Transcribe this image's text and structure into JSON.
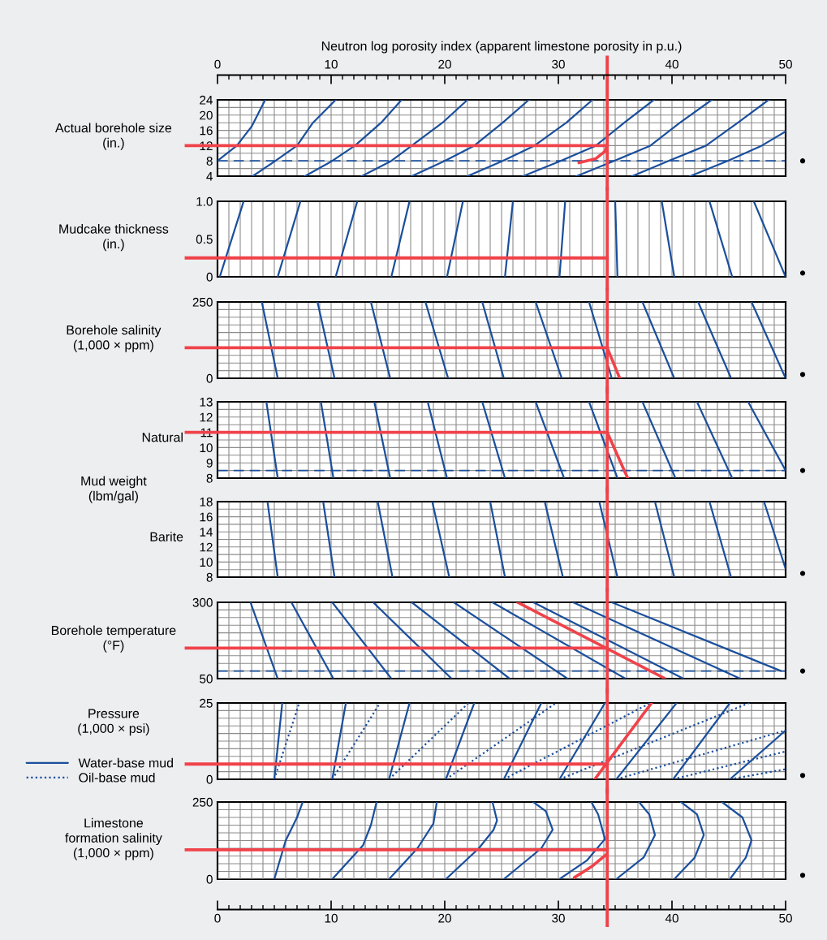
{
  "chart_data": [
    {
      "type": "line",
      "ylabel": "Actual borehole size\n(in.)",
      "x2label": "Neutron log porosity index (apparent limestone porosity in p.u.)",
      "xlim": [
        0,
        50
      ],
      "ylim": [
        4,
        24
      ],
      "x2lim": [
        0,
        50
      ],
      "x2ticks": [
        0,
        {
          "value": 1,
          "label": null
        },
        {
          "value": 2,
          "label": null
        },
        {
          "value": 3,
          "label": null
        },
        {
          "value": 4,
          "label": null
        },
        {
          "value": 5,
          "label": null
        },
        {
          "value": 6,
          "label": null
        },
        {
          "value": 7,
          "label": null
        },
        {
          "value": 8,
          "label": null
        },
        {
          "value": 9,
          "label": null
        },
        10,
        {
          "value": 11,
          "label": null
        },
        {
          "value": 12,
          "label": null
        },
        {
          "value": 13,
          "label": null
        },
        {
          "value": 14,
          "label": null
        },
        {
          "value": 15,
          "label": null
        },
        {
          "value": 16,
          "label": null
        },
        {
          "value": 17,
          "label": null
        },
        {
          "value": 18,
          "label": null
        },
        {
          "value": 19,
          "label": null
        },
        20,
        {
          "value": 21,
          "label": null
        },
        {
          "value": 22,
          "label": null
        },
        {
          "value": 23,
          "label": null
        },
        {
          "value": 24,
          "label": null
        },
        {
          "value": 25,
          "label": null
        },
        {
          "value": 26,
          "label": null
        },
        {
          "value": 27,
          "label": null
        },
        {
          "value": 28,
          "label": null
        },
        {
          "value": 29,
          "label": null
        },
        30,
        {
          "value": 31,
          "label": null
        },
        {
          "value": 32,
          "label": null
        },
        {
          "value": 33,
          "label": null
        },
        {
          "value": 34,
          "label": null
        },
        {
          "value": 35,
          "label": null
        },
        {
          "value": 36,
          "label": null
        },
        {
          "value": 37,
          "label": null
        },
        {
          "value": 38,
          "label": null
        },
        {
          "value": 39,
          "label": null
        },
        40,
        {
          "value": 41,
          "label": null
        },
        {
          "value": 42,
          "label": null
        },
        {
          "value": 43,
          "label": null
        },
        {
          "value": 44,
          "label": null
        },
        {
          "value": 45,
          "label": null
        },
        {
          "value": 46,
          "label": null
        },
        {
          "value": 47,
          "label": null
        },
        {
          "value": 48,
          "label": null
        },
        {
          "value": 49,
          "label": null
        },
        50
      ],
      "xticks": [
        0,
        1,
        2,
        3,
        4,
        5,
        6,
        7,
        8,
        9,
        10,
        11,
        12,
        13,
        14,
        15,
        16,
        17,
        18,
        19,
        20,
        21,
        22,
        23,
        24,
        25,
        26,
        27,
        28,
        29,
        30,
        31,
        32,
        33,
        34,
        35,
        36,
        37,
        38,
        39,
        40,
        41,
        42,
        43,
        44,
        45,
        46,
        47,
        48,
        49,
        50
      ],
      "yticks": [
        4,
        {
          "value": 6,
          "label": null
        },
        8,
        {
          "value": 10,
          "label": null
        },
        12,
        {
          "value": 14,
          "label": null
        },
        16,
        {
          "value": 18,
          "label": null
        },
        20,
        {
          "value": 22,
          "label": null
        },
        24
      ],
      "tick_labels": "y",
      "grid": true,
      "line_style": "solid",
      "ref_lines": [
        {
          "axis": "x",
          "value": 34.3,
          "color": "#f0424a",
          "line_style": "solid"
        },
        {
          "axis": "y",
          "value": 12,
          "color": "#f0424a",
          "line_style": "solid"
        },
        {
          "axis": "y",
          "value": 8,
          "color": "#1b4f9c",
          "line_style": "dashed"
        }
      ],
      "series": [
        {
          "color": "#1b4f9c",
          "x": [
            0,
            1.7,
            3.0,
            4.2
          ],
          "values": [
            8,
            12,
            17,
            24
          ]
        },
        {
          "color": "#1b4f9c",
          "x": [
            3.1,
            5.1,
            7.0,
            8.4,
            10.4
          ],
          "values": [
            4,
            8,
            12,
            18,
            24
          ]
        },
        {
          "color": "#1b4f9c",
          "x": [
            7.7,
            10.1,
            12.1,
            14.4,
            16.2
          ],
          "values": [
            4,
            8,
            12,
            18,
            24
          ]
        },
        {
          "color": "#1b4f9c",
          "x": [
            12.7,
            15.3,
            17.1,
            19.8,
            22.0
          ],
          "values": [
            4,
            8,
            12,
            18,
            24
          ]
        },
        {
          "color": "#1b4f9c",
          "x": [
            17.1,
            20.0,
            22.6,
            25.1,
            27.4
          ],
          "values": [
            4,
            8,
            12,
            18,
            24
          ]
        },
        {
          "color": "#1b4f9c",
          "x": [
            22.0,
            25.1,
            27.9,
            30.7,
            33.0
          ],
          "values": [
            4,
            8,
            12,
            18,
            24
          ]
        },
        {
          "color": "#1b4f9c",
          "x": [
            26.9,
            30.2,
            33.3,
            35.8,
            38.4
          ],
          "values": [
            4,
            8,
            12,
            18,
            24
          ]
        },
        {
          "color": "#1b4f9c",
          "x": [
            31.6,
            34.9,
            38.1,
            40.7,
            43.5
          ],
          "values": [
            4,
            8,
            12,
            18,
            24
          ]
        },
        {
          "color": "#1b4f9c",
          "x": [
            36.5,
            39.7,
            43.0,
            45.8,
            48.5
          ],
          "values": [
            4,
            8,
            12,
            18,
            24
          ]
        },
        {
          "color": "#1b4f9c",
          "x": [
            41.6,
            44.9,
            47.9,
            50
          ],
          "values": [
            4,
            8,
            12,
            15.7
          ]
        },
        {
          "color": "#f0424a",
          "x": [
            31.8,
            33.3,
            34.1,
            34.3
          ],
          "values": [
            7.5,
            8.6,
            10.5,
            12
          ]
        }
      ]
    },
    {
      "type": "line",
      "ylabel": "Mudcake thickness\n(in.)",
      "xlim": [
        0,
        50
      ],
      "ylim": [
        0,
        1.0
      ],
      "xticks": [
        0,
        1,
        2,
        3,
        4,
        5,
        6,
        7,
        8,
        9,
        10,
        11,
        12,
        13,
        14,
        15,
        16,
        17,
        18,
        19,
        20,
        21,
        22,
        23,
        24,
        25,
        26,
        27,
        28,
        29,
        30,
        31,
        32,
        33,
        34,
        35,
        36,
        37,
        38,
        39,
        40,
        41,
        42,
        43,
        44,
        45,
        46,
        47,
        48,
        49,
        50
      ],
      "yticks": [
        0,
        0.5,
        {
          "value": 1,
          "label": "1.0"
        }
      ],
      "tick_labels": "y",
      "grid": "x",
      "line_style": "solid",
      "ref_lines": [
        {
          "axis": "x",
          "value": 34.3,
          "color": "#f0424a",
          "line_style": "solid"
        },
        {
          "axis": "y",
          "value": 0.25,
          "color": "#f0424a",
          "line_style": "solid"
        }
      ],
      "series": [
        {
          "color": "#1b4f9c",
          "x": [
            0.2,
            2.3
          ],
          "values": [
            0,
            1.0
          ]
        },
        {
          "color": "#1b4f9c",
          "x": [
            5.3,
            7.3
          ],
          "values": [
            0,
            1.0
          ]
        },
        {
          "color": "#1b4f9c",
          "x": [
            10.4,
            12.3
          ],
          "values": [
            0,
            1.0
          ]
        },
        {
          "color": "#1b4f9c",
          "x": [
            15.3,
            16.9
          ],
          "values": [
            0,
            1.0
          ]
        },
        {
          "color": "#1b4f9c",
          "x": [
            20.2,
            21.6
          ],
          "values": [
            0,
            1.0
          ]
        },
        {
          "color": "#1b4f9c",
          "x": [
            25.3,
            26.0
          ],
          "values": [
            0,
            1.0
          ]
        },
        {
          "color": "#1b4f9c",
          "x": [
            30.1,
            30.6
          ],
          "values": [
            0,
            1.0
          ]
        },
        {
          "color": "#1b4f9c",
          "x": [
            35.2,
            35.0
          ],
          "values": [
            0,
            1.0
          ]
        },
        {
          "color": "#1b4f9c",
          "x": [
            40.2,
            39.1
          ],
          "values": [
            0,
            1.0
          ]
        },
        {
          "color": "#1b4f9c",
          "x": [
            45.3,
            43.3
          ],
          "values": [
            0,
            1.0
          ]
        },
        {
          "color": "#1b4f9c",
          "x": [
            50,
            47.2
          ],
          "values": [
            0,
            1.0
          ]
        }
      ]
    },
    {
      "type": "line",
      "ylabel": "Borehole salinity\n(1,000 × ppm)",
      "xlim": [
        0,
        50
      ],
      "ylim": [
        0,
        250
      ],
      "xticks": [
        0,
        1,
        2,
        3,
        4,
        5,
        6,
        7,
        8,
        9,
        10,
        11,
        12,
        13,
        14,
        15,
        16,
        17,
        18,
        19,
        20,
        21,
        22,
        23,
        24,
        25,
        26,
        27,
        28,
        29,
        30,
        31,
        32,
        33,
        34,
        35,
        36,
        37,
        38,
        39,
        40,
        41,
        42,
        43,
        44,
        45,
        46,
        47,
        48,
        49,
        50
      ],
      "yticks": [
        0,
        {
          "value": 25,
          "label": null
        },
        {
          "value": 50,
          "label": null
        },
        {
          "value": 75,
          "label": null
        },
        {
          "value": 100,
          "label": null
        },
        {
          "value": 125,
          "label": null
        },
        {
          "value": 150,
          "label": null
        },
        {
          "value": 175,
          "label": null
        },
        {
          "value": 200,
          "label": null
        },
        {
          "value": 225,
          "label": null
        },
        250
      ],
      "tick_labels": "y",
      "grid": true,
      "line_style": "solid",
      "ref_lines": [
        {
          "axis": "x",
          "value": 34.3,
          "color": "#f0424a",
          "line_style": "solid"
        },
        {
          "axis": "y",
          "value": 100,
          "color": "#f0424a",
          "line_style": "solid"
        }
      ],
      "series": [
        {
          "color": "#1b4f9c",
          "x": [
            3.9,
            5.3
          ],
          "values": [
            250,
            0
          ]
        },
        {
          "color": "#1b4f9c",
          "x": [
            8.8,
            10.3
          ],
          "values": [
            250,
            0
          ]
        },
        {
          "color": "#1b4f9c",
          "x": [
            13.5,
            15.2
          ],
          "values": [
            250,
            0
          ]
        },
        {
          "color": "#1b4f9c",
          "x": [
            18.3,
            20.3
          ],
          "values": [
            250,
            0
          ]
        },
        {
          "color": "#1b4f9c",
          "x": [
            23.3,
            25.2
          ],
          "values": [
            250,
            0
          ]
        },
        {
          "color": "#1b4f9c",
          "x": [
            28.0,
            30.3
          ],
          "values": [
            250,
            0
          ]
        },
        {
          "color": "#1b4f9c",
          "x": [
            32.7,
            34.7
          ],
          "values": [
            250,
            0
          ]
        },
        {
          "color": "#1b4f9c",
          "x": [
            37.4,
            40.2
          ],
          "values": [
            250,
            0
          ]
        },
        {
          "color": "#1b4f9c",
          "x": [
            42.3,
            45.2
          ],
          "values": [
            250,
            0
          ]
        },
        {
          "color": "#1b4f9c",
          "x": [
            47.0,
            50
          ],
          "values": [
            250,
            0
          ]
        },
        {
          "color": "#f0424a",
          "x": [
            34.3,
            35.4
          ],
          "values": [
            100,
            0
          ]
        }
      ]
    },
    {
      "type": "line",
      "ylabel": "Natural",
      "xlim": [
        0,
        50
      ],
      "ylim": [
        8,
        13
      ],
      "annotations": [
        "Mud weight\n(lbm/gal)"
      ],
      "xticks": [
        0,
        1,
        2,
        3,
        4,
        5,
        6,
        7,
        8,
        9,
        10,
        11,
        12,
        13,
        14,
        15,
        16,
        17,
        18,
        19,
        20,
        21,
        22,
        23,
        24,
        25,
        26,
        27,
        28,
        29,
        30,
        31,
        32,
        33,
        34,
        35,
        36,
        37,
        38,
        39,
        40,
        41,
        42,
        43,
        44,
        45,
        46,
        47,
        48,
        49,
        50
      ],
      "yticks": [
        8,
        {
          "value": 8.5,
          "label": null
        },
        9,
        {
          "value": 9.5,
          "label": null
        },
        10,
        {
          "value": 10.5,
          "label": null
        },
        11,
        {
          "value": 11.5,
          "label": null
        },
        12,
        {
          "value": 12.5,
          "label": null
        },
        13
      ],
      "tick_labels": "y",
      "grid": true,
      "line_style": "solid",
      "ref_lines": [
        {
          "axis": "x",
          "value": 34.3,
          "color": "#f0424a",
          "line_style": "solid"
        },
        {
          "axis": "y",
          "value": 11,
          "color": "#f0424a",
          "line_style": "solid"
        },
        {
          "axis": "y",
          "value": 8.5,
          "color": "#1b4f9c",
          "line_style": "dashed"
        }
      ],
      "series": [
        {
          "color": "#1b4f9c",
          "x": [
            4.3,
            5.3
          ],
          "values": [
            13,
            8
          ]
        },
        {
          "color": "#1b4f9c",
          "x": [
            9.1,
            10.2
          ],
          "values": [
            13,
            8
          ]
        },
        {
          "color": "#1b4f9c",
          "x": [
            13.8,
            15.2
          ],
          "values": [
            13,
            8
          ]
        },
        {
          "color": "#1b4f9c",
          "x": [
            18.5,
            20.2
          ],
          "values": [
            13,
            8
          ]
        },
        {
          "color": "#1b4f9c",
          "x": [
            23.3,
            25.3
          ],
          "values": [
            13,
            8
          ]
        },
        {
          "color": "#1b4f9c",
          "x": [
            28.0,
            30.5
          ],
          "values": [
            13,
            8
          ]
        },
        {
          "color": "#1b4f9c",
          "x": [
            32.7,
            35.2
          ],
          "values": [
            13,
            8
          ]
        },
        {
          "color": "#1b4f9c",
          "x": [
            37.4,
            40.3
          ],
          "values": [
            13,
            8
          ]
        },
        {
          "color": "#1b4f9c",
          "x": [
            42.2,
            45.3
          ],
          "values": [
            13,
            8
          ]
        },
        {
          "color": "#1b4f9c",
          "x": [
            46.7,
            50
          ],
          "values": [
            13,
            8.5
          ]
        },
        {
          "color": "#f0424a",
          "x": [
            34.3,
            36.1
          ],
          "values": [
            11,
            8
          ]
        }
      ]
    },
    {
      "type": "line",
      "ylabel": "Barite",
      "xlim": [
        0,
        50
      ],
      "ylim": [
        8,
        18
      ],
      "xticks": [
        0,
        1,
        2,
        3,
        4,
        5,
        6,
        7,
        8,
        9,
        10,
        11,
        12,
        13,
        14,
        15,
        16,
        17,
        18,
        19,
        20,
        21,
        22,
        23,
        24,
        25,
        26,
        27,
        28,
        29,
        30,
        31,
        32,
        33,
        34,
        35,
        36,
        37,
        38,
        39,
        40,
        41,
        42,
        43,
        44,
        45,
        46,
        47,
        48,
        49,
        50
      ],
      "yticks": [
        8,
        {
          "value": 9,
          "label": null
        },
        10,
        {
          "value": 11,
          "label": null
        },
        12,
        {
          "value": 13,
          "label": null
        },
        14,
        {
          "value": 15,
          "label": null
        },
        16,
        {
          "value": 17,
          "label": null
        },
        18
      ],
      "tick_labels": "y",
      "grid": true,
      "line_style": "solid",
      "ref_lines": [
        {
          "axis": "x",
          "value": 34.3,
          "color": "#f0424a",
          "line_style": "solid"
        }
      ],
      "series": [
        {
          "color": "#1b4f9c",
          "x": [
            4.4,
            5.3
          ],
          "values": [
            18,
            8
          ]
        },
        {
          "color": "#1b4f9c",
          "x": [
            9.3,
            10.3
          ],
          "values": [
            18,
            8
          ]
        },
        {
          "color": "#1b4f9c",
          "x": [
            14.1,
            15.4
          ],
          "values": [
            18,
            8
          ]
        },
        {
          "color": "#1b4f9c",
          "x": [
            18.9,
            20.4
          ],
          "values": [
            18,
            8
          ]
        },
        {
          "color": "#1b4f9c",
          "x": [
            24.0,
            25.3
          ],
          "values": [
            18,
            8
          ]
        },
        {
          "color": "#1b4f9c",
          "x": [
            28.8,
            30.4
          ],
          "values": [
            18,
            8
          ]
        },
        {
          "color": "#1b4f9c",
          "x": [
            33.6,
            35.2
          ],
          "values": [
            18,
            8
          ]
        },
        {
          "color": "#1b4f9c",
          "x": [
            38.5,
            40.2
          ],
          "values": [
            18,
            8
          ]
        },
        {
          "color": "#1b4f9c",
          "x": [
            43.3,
            45.2
          ],
          "values": [
            18,
            8
          ]
        },
        {
          "color": "#1b4f9c",
          "x": [
            48.1,
            50
          ],
          "values": [
            18,
            9.1
          ]
        }
      ]
    },
    {
      "type": "line",
      "ylabel": "Borehole temperature\n(°F)",
      "xlim": [
        0,
        50
      ],
      "ylim": [
        50,
        300
      ],
      "xticks": [
        0,
        1,
        2,
        3,
        4,
        5,
        6,
        7,
        8,
        9,
        10,
        11,
        12,
        13,
        14,
        15,
        16,
        17,
        18,
        19,
        20,
        21,
        22,
        23,
        24,
        25,
        26,
        27,
        28,
        29,
        30,
        31,
        32,
        33,
        34,
        35,
        36,
        37,
        38,
        39,
        40,
        41,
        42,
        43,
        44,
        45,
        46,
        47,
        48,
        49,
        50
      ],
      "yticks": [
        50,
        {
          "value": 75,
          "label": null
        },
        {
          "value": 100,
          "label": null
        },
        {
          "value": 125,
          "label": null
        },
        {
          "value": 150,
          "label": null
        },
        {
          "value": 175,
          "label": null
        },
        {
          "value": 200,
          "label": null
        },
        {
          "value": 225,
          "label": null
        },
        {
          "value": 250,
          "label": null
        },
        {
          "value": 275,
          "label": null
        },
        300
      ],
      "tick_labels": "y",
      "grid": true,
      "line_style": "solid",
      "ref_lines": [
        {
          "axis": "x",
          "value": 34.3,
          "color": "#f0424a",
          "line_style": "solid"
        },
        {
          "axis": "y",
          "value": 150,
          "color": "#f0424a",
          "line_style": "solid"
        },
        {
          "axis": "y",
          "value": 75,
          "color": "#1b4f9c",
          "line_style": "dashed"
        }
      ],
      "series": [
        {
          "color": "#1b4f9c",
          "x": [
            2.9,
            5.3
          ],
          "values": [
            300,
            50
          ]
        },
        {
          "color": "#1b4f9c",
          "x": [
            6.5,
            10.2
          ],
          "values": [
            300,
            50
          ]
        },
        {
          "color": "#1b4f9c",
          "x": [
            10.1,
            15.3
          ],
          "values": [
            300,
            50
          ]
        },
        {
          "color": "#1b4f9c",
          "x": [
            13.7,
            20.6
          ],
          "values": [
            300,
            50
          ]
        },
        {
          "color": "#1b4f9c",
          "x": [
            17.1,
            25.7
          ],
          "values": [
            300,
            50
          ]
        },
        {
          "color": "#1b4f9c",
          "x": [
            20.8,
            30.8
          ],
          "values": [
            300,
            50
          ]
        },
        {
          "color": "#1b4f9c",
          "x": [
            24.2,
            35.9
          ],
          "values": [
            300,
            50
          ]
        },
        {
          "color": "#1b4f9c",
          "x": [
            27.8,
            41.0
          ],
          "values": [
            300,
            50
          ]
        },
        {
          "color": "#1b4f9c",
          "x": [
            31.3,
            46.0
          ],
          "values": [
            300,
            50
          ]
        },
        {
          "color": "#1b4f9c",
          "x": [
            34.7,
            49.6
          ],
          "values": [
            300,
            75
          ]
        },
        {
          "color": "#f0424a",
          "x": [
            26.4,
            39.4
          ],
          "values": [
            300,
            50
          ]
        }
      ]
    },
    {
      "type": "line",
      "ylabel": "Pressure\n(1,000 × psi)",
      "xlim": [
        0,
        50
      ],
      "ylim": [
        0,
        25
      ],
      "legend": "left",
      "xticks": [
        0,
        1,
        2,
        3,
        4,
        5,
        6,
        7,
        8,
        9,
        10,
        11,
        12,
        13,
        14,
        15,
        16,
        17,
        18,
        19,
        20,
        21,
        22,
        23,
        24,
        25,
        26,
        27,
        28,
        29,
        30,
        31,
        32,
        33,
        34,
        35,
        36,
        37,
        38,
        39,
        40,
        41,
        42,
        43,
        44,
        45,
        46,
        47,
        48,
        49,
        50
      ],
      "yticks": [
        0,
        {
          "value": 2.5,
          "label": null
        },
        {
          "value": 5,
          "label": null
        },
        {
          "value": 7.5,
          "label": null
        },
        {
          "value": 10,
          "label": null
        },
        {
          "value": 12.5,
          "label": null
        },
        {
          "value": 15,
          "label": null
        },
        {
          "value": 17.5,
          "label": null
        },
        {
          "value": 20,
          "label": null
        },
        {
          "value": 22.5,
          "label": null
        },
        25
      ],
      "tick_labels": "y",
      "grid": true,
      "line_style": "solid",
      "ref_lines": [
        {
          "axis": "x",
          "value": 34.3,
          "color": "#f0424a",
          "line_style": "solid"
        },
        {
          "axis": "y",
          "value": 5,
          "color": "#f0424a",
          "line_style": "solid"
        }
      ],
      "series": [
        {
          "name": "Water-base mud",
          "color": "#1b4f9c",
          "x": [
            5.0,
            5.7
          ],
          "values": [
            0,
            25
          ]
        },
        {
          "color": "#1b4f9c",
          "x": [
            10.1,
            11.3
          ],
          "values": [
            0,
            25
          ]
        },
        {
          "color": "#1b4f9c",
          "x": [
            15.1,
            16.9
          ],
          "values": [
            0,
            25
          ]
        },
        {
          "color": "#1b4f9c",
          "x": [
            20.1,
            22.6
          ],
          "values": [
            0,
            25
          ]
        },
        {
          "color": "#1b4f9c",
          "x": [
            25.2,
            28.5
          ],
          "values": [
            0,
            25
          ]
        },
        {
          "color": "#1b4f9c",
          "x": [
            30.1,
            34.1
          ],
          "values": [
            0,
            25
          ]
        },
        {
          "color": "#1b4f9c",
          "x": [
            35.1,
            40.4
          ],
          "values": [
            0,
            25
          ]
        },
        {
          "color": "#1b4f9c",
          "x": [
            40.1,
            45.1
          ],
          "values": [
            0,
            25
          ]
        },
        {
          "color": "#1b4f9c",
          "x": [
            45.1,
            50
          ],
          "values": [
            0,
            16.0
          ]
        },
        {
          "name": "Oil-base mud",
          "color": "#1b4f9c",
          "line_style": "dotted",
          "x": [
            5.0,
            7.2
          ],
          "values": [
            0,
            25
          ]
        },
        {
          "color": "#1b4f9c",
          "line_style": "dotted",
          "x": [
            10.1,
            14.3
          ],
          "values": [
            0,
            25
          ]
        },
        {
          "color": "#1b4f9c",
          "line_style": "dotted",
          "x": [
            15.1,
            22.1
          ],
          "values": [
            0,
            25
          ]
        },
        {
          "color": "#1b4f9c",
          "line_style": "dotted",
          "x": [
            20.1,
            29.8
          ],
          "values": [
            0,
            25
          ]
        },
        {
          "color": "#1b4f9c",
          "line_style": "dotted",
          "x": [
            25.2,
            38.1
          ],
          "values": [
            0,
            25
          ]
        },
        {
          "color": "#1b4f9c",
          "line_style": "dotted",
          "x": [
            30.1,
            46.8
          ],
          "values": [
            0,
            25
          ]
        },
        {
          "color": "#1b4f9c",
          "line_style": "dotted",
          "x": [
            35.1,
            50
          ],
          "values": [
            0,
            16.0
          ]
        },
        {
          "color": "#1b4f9c",
          "line_style": "dotted",
          "x": [
            40.1,
            50
          ],
          "values": [
            0,
            9.1
          ]
        },
        {
          "color": "#1b4f9c",
          "line_style": "dotted",
          "x": [
            45.1,
            50
          ],
          "values": [
            0,
            3.3
          ]
        },
        {
          "color": "#f0424a",
          "x": [
            33.2,
            38.2
          ],
          "values": [
            0,
            25
          ]
        }
      ]
    },
    {
      "type": "line",
      "ylabel": "Limestone\nformation salinity\n(1,000 × ppm)",
      "xlim": [
        0,
        50
      ],
      "ylim": [
        0,
        250
      ],
      "xticks": [
        0,
        {
          "value": 1,
          "label": null
        },
        {
          "value": 2,
          "label": null
        },
        {
          "value": 3,
          "label": null
        },
        {
          "value": 4,
          "label": null
        },
        {
          "value": 5,
          "label": null
        },
        {
          "value": 6,
          "label": null
        },
        {
          "value": 7,
          "label": null
        },
        {
          "value": 8,
          "label": null
        },
        {
          "value": 9,
          "label": null
        },
        10,
        {
          "value": 11,
          "label": null
        },
        {
          "value": 12,
          "label": null
        },
        {
          "value": 13,
          "label": null
        },
        {
          "value": 14,
          "label": null
        },
        {
          "value": 15,
          "label": null
        },
        {
          "value": 16,
          "label": null
        },
        {
          "value": 17,
          "label": null
        },
        {
          "value": 18,
          "label": null
        },
        {
          "value": 19,
          "label": null
        },
        20,
        {
          "value": 21,
          "label": null
        },
        {
          "value": 22,
          "label": null
        },
        {
          "value": 23,
          "label": null
        },
        {
          "value": 24,
          "label": null
        },
        {
          "value": 25,
          "label": null
        },
        {
          "value": 26,
          "label": null
        },
        {
          "value": 27,
          "label": null
        },
        {
          "value": 28,
          "label": null
        },
        {
          "value": 29,
          "label": null
        },
        30,
        {
          "value": 31,
          "label": null
        },
        {
          "value": 32,
          "label": null
        },
        {
          "value": 33,
          "label": null
        },
        {
          "value": 34,
          "label": null
        },
        {
          "value": 35,
          "label": null
        },
        {
          "value": 36,
          "label": null
        },
        {
          "value": 37,
          "label": null
        },
        {
          "value": 38,
          "label": null
        },
        {
          "value": 39,
          "label": null
        },
        40,
        {
          "value": 41,
          "label": null
        },
        {
          "value": 42,
          "label": null
        },
        {
          "value": 43,
          "label": null
        },
        {
          "value": 44,
          "label": null
        },
        {
          "value": 45,
          "label": null
        },
        {
          "value": 46,
          "label": null
        },
        {
          "value": 47,
          "label": null
        },
        {
          "value": 48,
          "label": null
        },
        {
          "value": 49,
          "label": null
        },
        50
      ],
      "yticks": [
        0,
        {
          "value": 25,
          "label": null
        },
        {
          "value": 50,
          "label": null
        },
        {
          "value": 75,
          "label": null
        },
        {
          "value": 100,
          "label": null
        },
        {
          "value": 125,
          "label": null
        },
        {
          "value": 150,
          "label": null
        },
        {
          "value": 175,
          "label": null
        },
        {
          "value": 200,
          "label": null
        },
        {
          "value": 225,
          "label": null
        },
        250
      ],
      "grid": true,
      "line_style": "solid",
      "ref_lines": [
        {
          "axis": "x",
          "value": 34.3,
          "color": "#f0424a",
          "line_style": "solid"
        },
        {
          "axis": "y",
          "value": 95,
          "color": "#f0424a",
          "line_style": "solid"
        }
      ],
      "series": [
        {
          "color": "#1b4f9c",
          "x": [
            5.0,
            6.0,
            7.0,
            7.5
          ],
          "values": [
            0,
            125,
            200,
            250
          ]
        },
        {
          "color": "#1b4f9c",
          "x": [
            10.1,
            12.8,
            13.5,
            14.0
          ],
          "values": [
            0,
            109,
            175,
            250
          ]
        },
        {
          "color": "#1b4f9c",
          "x": [
            15.1,
            17.6,
            19.0,
            19.3
          ],
          "values": [
            0,
            100,
            180,
            250
          ]
        },
        {
          "color": "#1b4f9c",
          "x": [
            20.1,
            23.0,
            24.3,
            24.6,
            24.2
          ],
          "values": [
            0,
            100,
            160,
            190,
            250
          ]
        },
        {
          "color": "#1b4f9c",
          "x": [
            25.2,
            28.5,
            29.5,
            28.9,
            27.8
          ],
          "values": [
            0,
            100,
            160,
            220,
            250
          ]
        },
        {
          "color": "#1b4f9c",
          "x": [
            30.1,
            32.5,
            34.1,
            33.5,
            32.9
          ],
          "values": [
            0,
            60,
            130,
            210,
            250
          ]
        },
        {
          "color": "#1b4f9c",
          "x": [
            35.1,
            37.5,
            38.5,
            38.0,
            37.1
          ],
          "values": [
            0,
            70,
            143,
            210,
            250
          ]
        },
        {
          "color": "#1b4f9c",
          "x": [
            40.2,
            42.0,
            42.8,
            42.2,
            40.8
          ],
          "values": [
            0,
            70,
            143,
            210,
            250
          ]
        },
        {
          "color": "#1b4f9c",
          "x": [
            45.1,
            46.5,
            47.0,
            46.2,
            44.4
          ],
          "values": [
            0,
            70,
            126,
            200,
            250
          ]
        },
        {
          "color": "#f0424a",
          "x": [
            31.4,
            32.9,
            34.2
          ],
          "values": [
            5,
            40,
            79
          ]
        }
      ]
    }
  ]
}
